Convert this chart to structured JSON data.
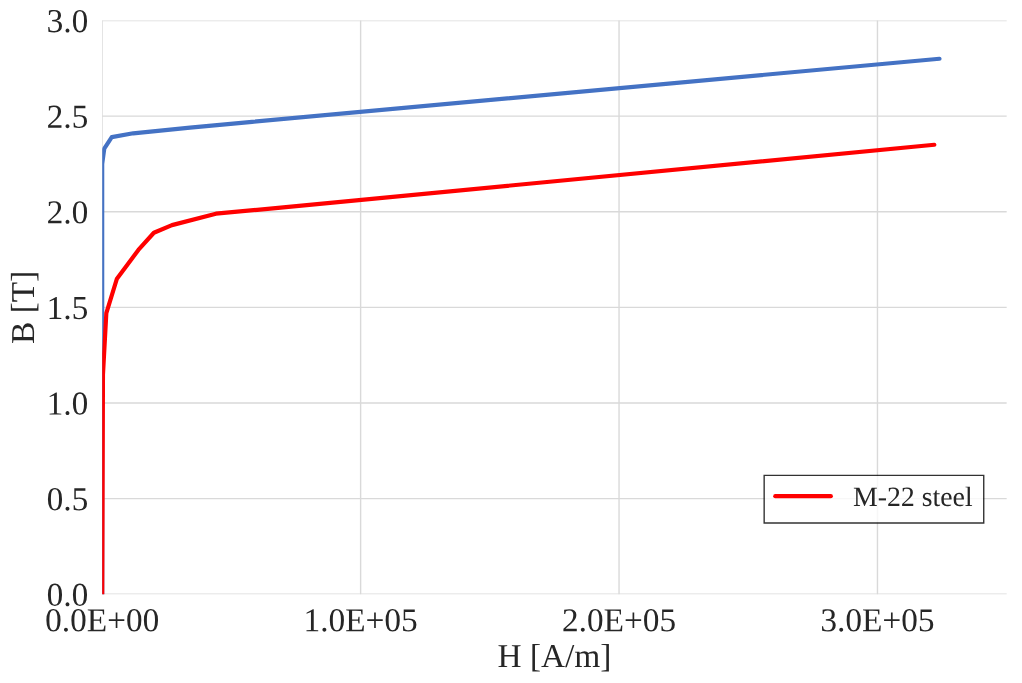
{
  "chart_data": {
    "type": "line",
    "xlabel": "H [A/m]",
    "ylabel": "B [T]",
    "xlim": [
      0,
      350000
    ],
    "ylim": [
      0,
      3.0
    ],
    "xticks": [
      {
        "value": 0,
        "label": "0.0E+00"
      },
      {
        "value": 100000,
        "label": "1.0E+05"
      },
      {
        "value": 200000,
        "label": "2.0E+05"
      },
      {
        "value": 300000,
        "label": "3.0E+05"
      }
    ],
    "yticks": [
      {
        "value": 0,
        "label": "0.0"
      },
      {
        "value": 0.5,
        "label": "0.5"
      },
      {
        "value": 1.0,
        "label": "1.0"
      },
      {
        "value": 1.5,
        "label": "1.5"
      },
      {
        "value": 2.0,
        "label": "2.0"
      },
      {
        "value": 2.5,
        "label": "2.5"
      },
      {
        "value": 3.0,
        "label": "3.0"
      }
    ],
    "grid": true,
    "legend": "bottom right",
    "marker": "none",
    "line_style": "solid",
    "series": [
      {
        "color": "#4472c4",
        "x": [
          0,
          0,
          800,
          3700,
          12000,
          34000,
          58000,
          324000
        ],
        "values": [
          0,
          2.25,
          2.33,
          2.39,
          2.41,
          2.44,
          2.47,
          2.8
        ]
      },
      {
        "name": "M-22 steel",
        "color": "#ff0000",
        "x": [
          0,
          300,
          1600,
          5700,
          14000,
          20000,
          27000,
          44000,
          60000,
          322000
        ],
        "values": [
          0,
          1.15,
          1.47,
          1.65,
          1.8,
          1.89,
          1.93,
          1.99,
          2.01,
          2.35
        ]
      }
    ]
  }
}
